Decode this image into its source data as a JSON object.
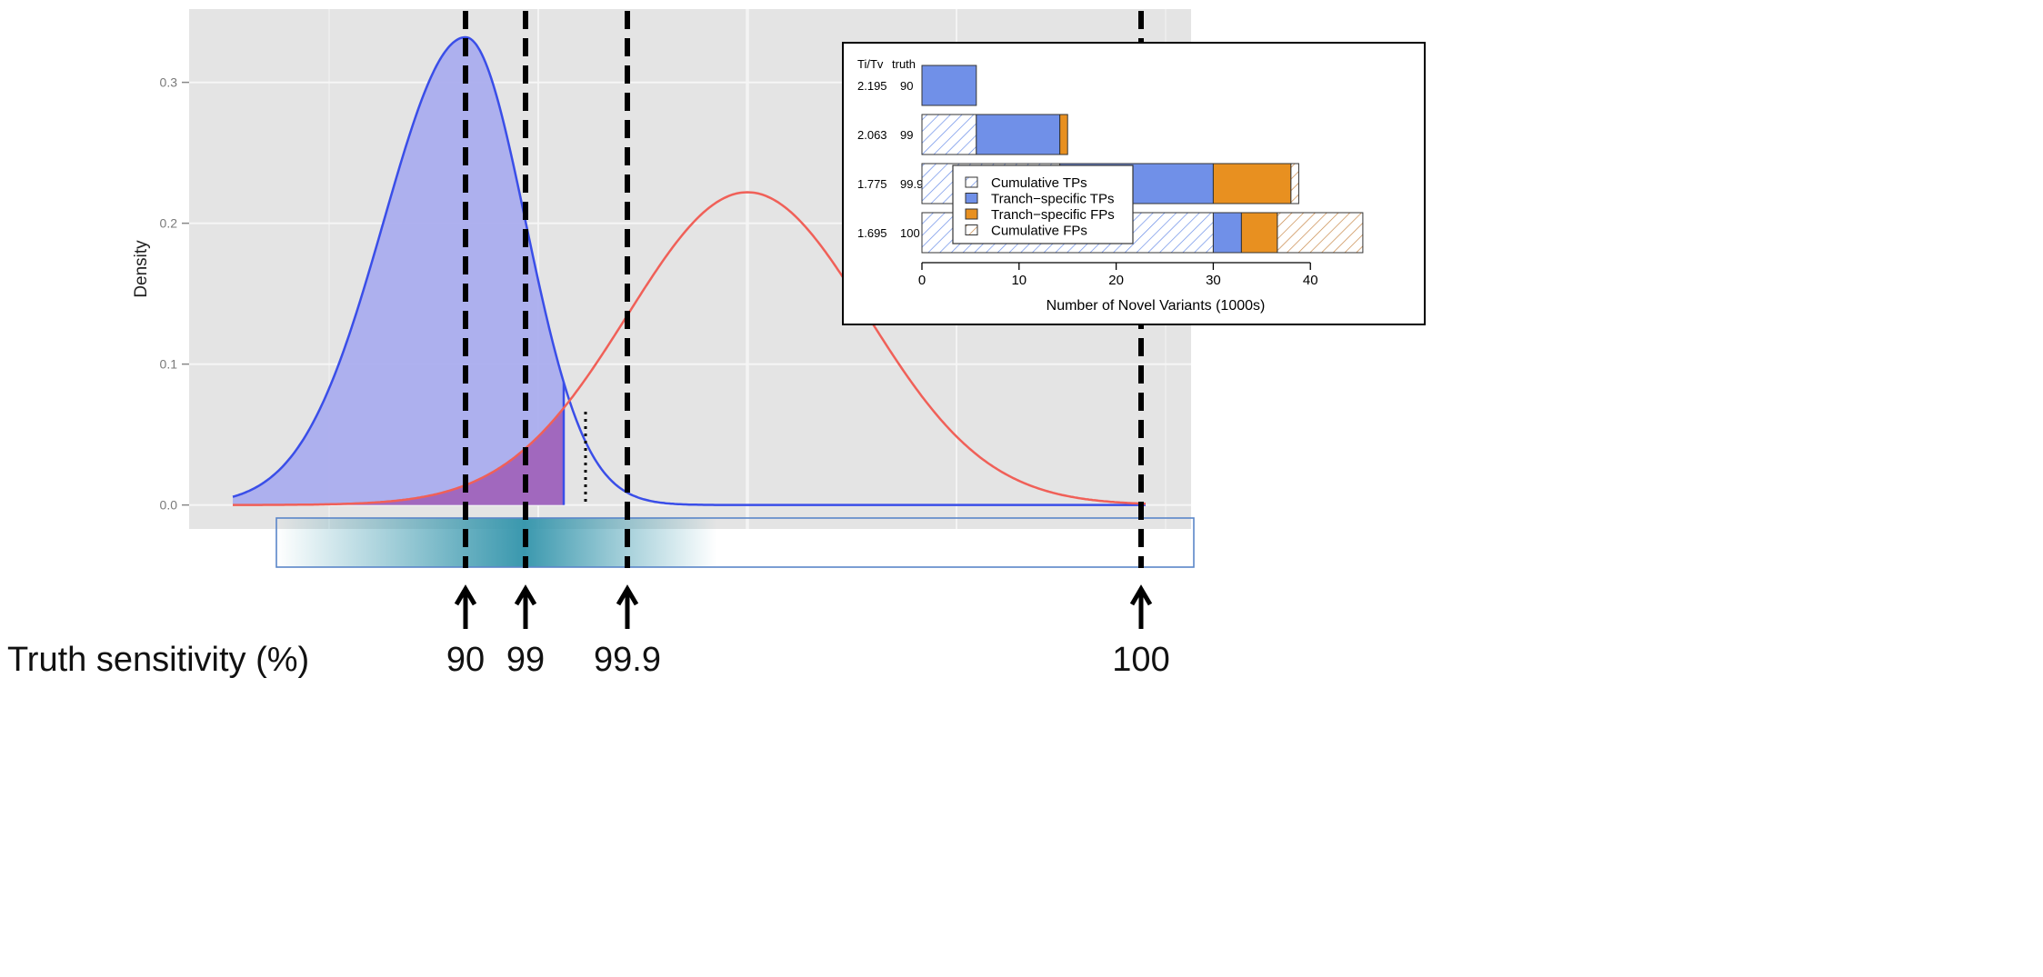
{
  "chart_data": [
    {
      "type": "area",
      "title": "",
      "ylabel": "Density",
      "xlabel": "",
      "ylim": [
        -0.017,
        0.352
      ],
      "y_ticks": [
        {
          "value": 0.0,
          "label": "0.0"
        },
        {
          "value": 0.1,
          "label": "0.1"
        },
        {
          "value": 0.2,
          "label": "0.2"
        },
        {
          "value": 0.3,
          "label": "0.3"
        }
      ],
      "grid": true,
      "series": [
        {
          "color": "#3a4ee8",
          "fill": "#a6aaee",
          "peak_density": 0.332,
          "shading": "left of 99.9 cutoff"
        },
        {
          "color": "#f06058",
          "peak_density": 0.222,
          "shading": "overlap with first series"
        }
      ],
      "overlap_fill": "#a060b8",
      "sensitivity_bar": {
        "gradient_color": "#3a98ae",
        "border_color": "#5a86c8"
      },
      "caption_label": "Truth sensitivity (%)",
      "thresholds": [
        {
          "label": "90"
        },
        {
          "label": "99"
        },
        {
          "label": "99.9"
        },
        {
          "label": "100"
        }
      ]
    },
    {
      "type": "bar",
      "orientation": "horizontal",
      "stacked": true,
      "xlabel": "Number of Novel Variants (1000s)",
      "xlim": [
        0,
        47
      ],
      "x_ticks": [
        0,
        10,
        20,
        30,
        40
      ],
      "row_header": {
        "titv": "Ti/Tv",
        "truth": "truth"
      },
      "categories": [
        {
          "titv": "2.195",
          "truth": "90"
        },
        {
          "titv": "2.063",
          "truth": "99"
        },
        {
          "titv": "1.775",
          "truth": "99.9"
        },
        {
          "titv": "1.695",
          "truth": "100"
        }
      ],
      "series": [
        {
          "name": "Cumulative TPs",
          "color": "#6a8ee8",
          "hatched": true,
          "values": [
            0,
            5.6,
            14.2,
            30.0
          ]
        },
        {
          "name": "Tranch−specific TPs",
          "color": "#7090e8",
          "hatched": false,
          "values": [
            5.6,
            8.6,
            15.8,
            2.9
          ]
        },
        {
          "name": "Tranch−specific FPs",
          "color": "#e89020",
          "hatched": false,
          "values": [
            0,
            0.8,
            8.0,
            3.7
          ]
        },
        {
          "name": "Cumulative FPs",
          "color": "#d09868",
          "hatched": true,
          "values": [
            0,
            0,
            0.8,
            8.8
          ]
        }
      ],
      "legend_position": "center-left"
    }
  ]
}
